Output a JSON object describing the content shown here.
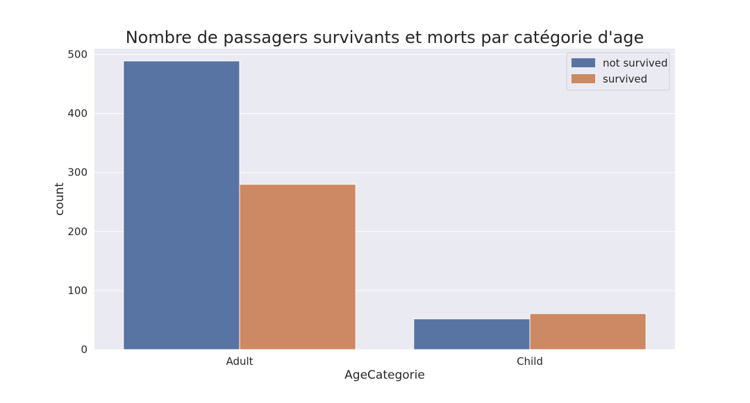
{
  "colors": {
    "plot_background": "#eaeaf2",
    "grid": "#ffffff",
    "not_survived": "#5874a3",
    "survived": "#cc8963"
  },
  "chart_data": {
    "type": "bar",
    "title": "Nombre de passagers survivants et morts par catégorie d'age",
    "xlabel": "AgeCategorie",
    "ylabel": "count",
    "categories": [
      "Adult",
      "Child"
    ],
    "series": [
      {
        "name": "not survived",
        "values": [
          489,
          52
        ]
      },
      {
        "name": "survived",
        "values": [
          280,
          61
        ]
      }
    ],
    "ylim": [
      0,
      510
    ],
    "yticks": [
      0,
      100,
      200,
      300,
      400,
      500
    ],
    "grid": true,
    "legend_position": "top-right"
  }
}
